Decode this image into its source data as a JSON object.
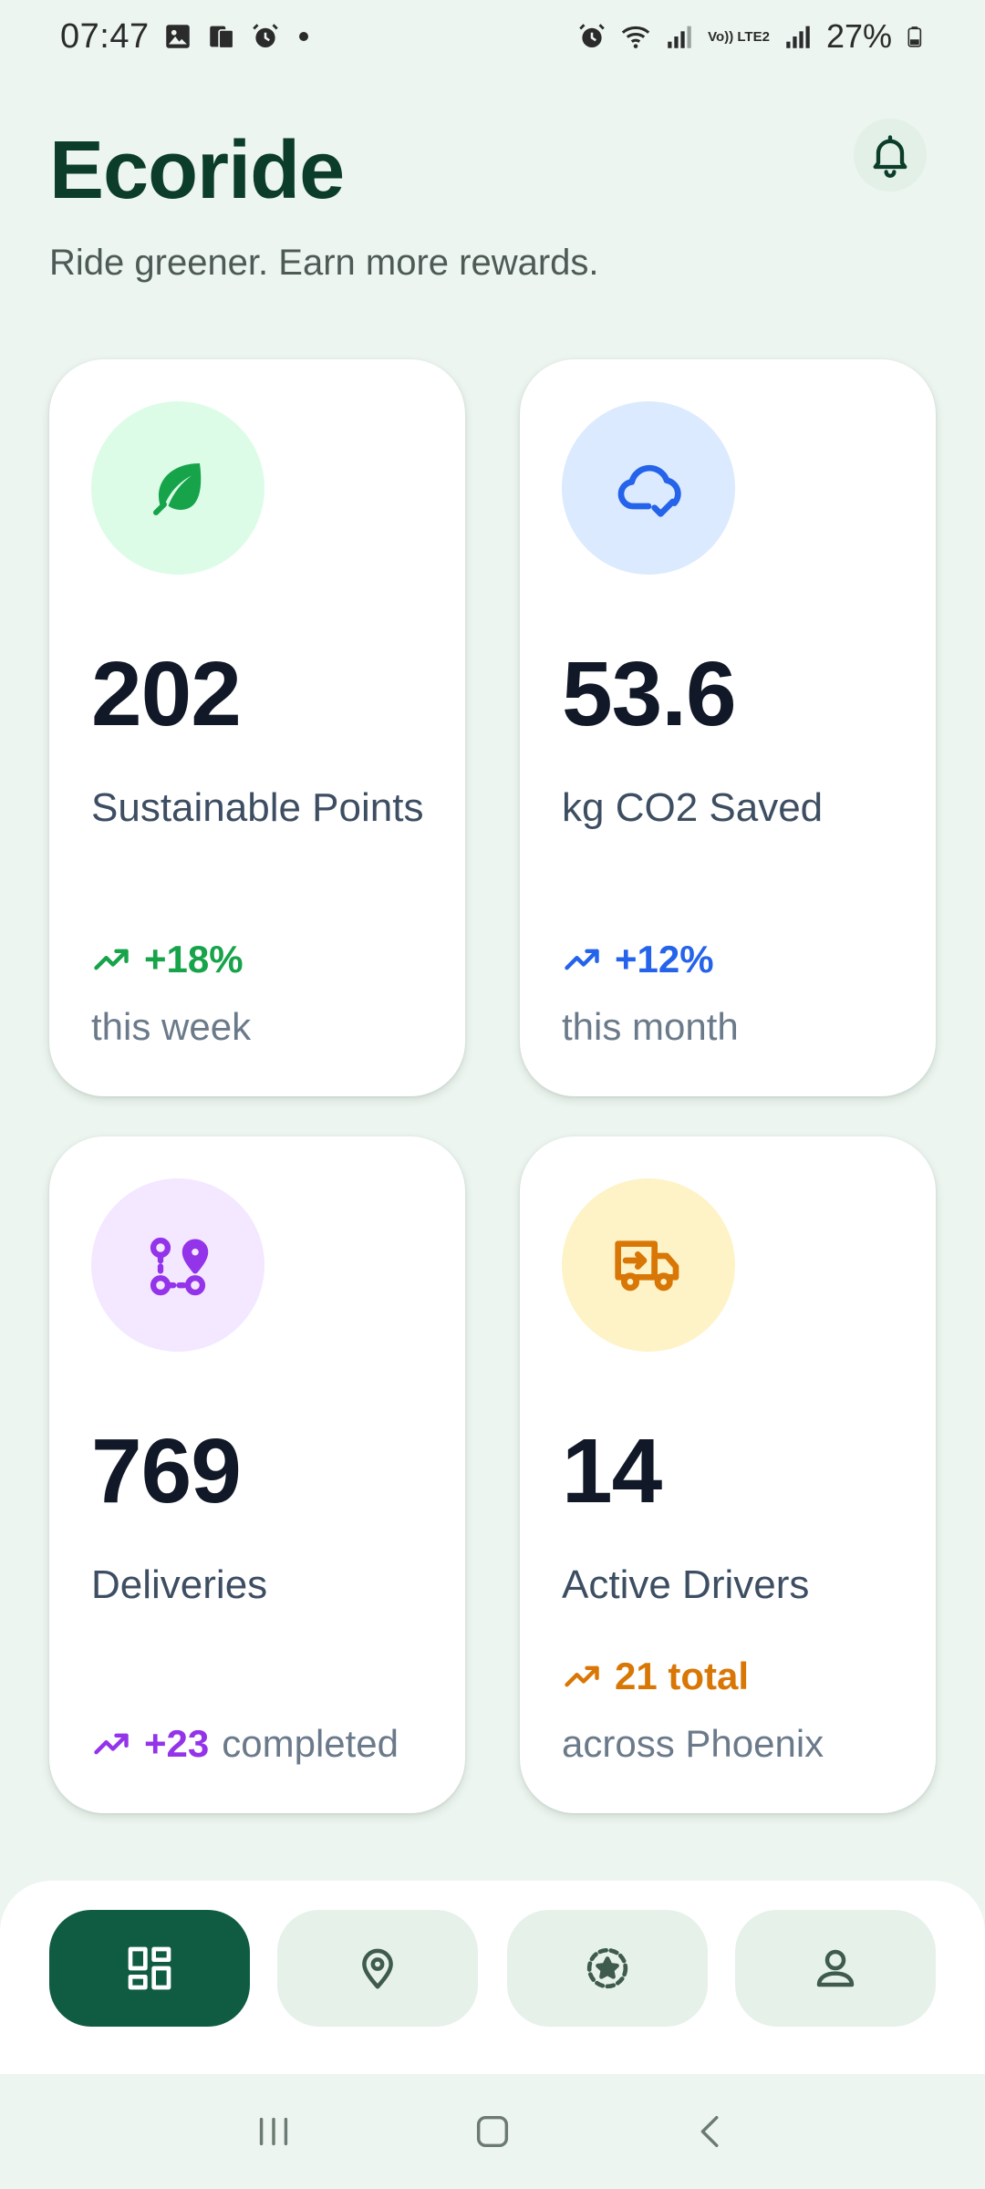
{
  "status_bar": {
    "time": "07:47",
    "battery": "27%",
    "network_label": "Vo)) LTE2"
  },
  "header": {
    "title": "Ecoride",
    "subtitle": "Ride greener. Earn more rewards.",
    "notification_icon": "bell-icon"
  },
  "stats": [
    {
      "icon": "leaf-icon",
      "icon_bg": "#dcfce7",
      "icon_color": "#16a34a",
      "value": "202",
      "label": "Sustainable Points",
      "trend": "+18%",
      "trend_note": "this week",
      "accent": "#16a34a"
    },
    {
      "icon": "cloud-check-icon",
      "icon_bg": "#dbeafe",
      "icon_color": "#2563eb",
      "value": "53.6",
      "label": "kg CO2 Saved",
      "trend": "+12%",
      "trend_note": "this month",
      "accent": "#2563eb"
    },
    {
      "icon": "route-icon",
      "icon_bg": "#f3e8ff",
      "icon_color": "#9333ea",
      "value": "769",
      "label": "Deliveries",
      "trend": "+23",
      "trend_note": "completed",
      "accent": "#9333ea"
    },
    {
      "icon": "delivery-truck-icon",
      "icon_bg": "#fef3c7",
      "icon_color": "#d97706",
      "value": "14",
      "label": "Active Drivers",
      "trend": "21 total",
      "trend_note": "across Phoenix",
      "accent": "#d97706"
    }
  ],
  "bottom_nav": {
    "items": [
      {
        "icon": "dashboard-icon",
        "active": true
      },
      {
        "icon": "map-pin-icon",
        "active": false
      },
      {
        "icon": "rewards-badge-icon",
        "active": false
      },
      {
        "icon": "profile-icon",
        "active": false
      }
    ],
    "active_color": "#0f5c42"
  }
}
